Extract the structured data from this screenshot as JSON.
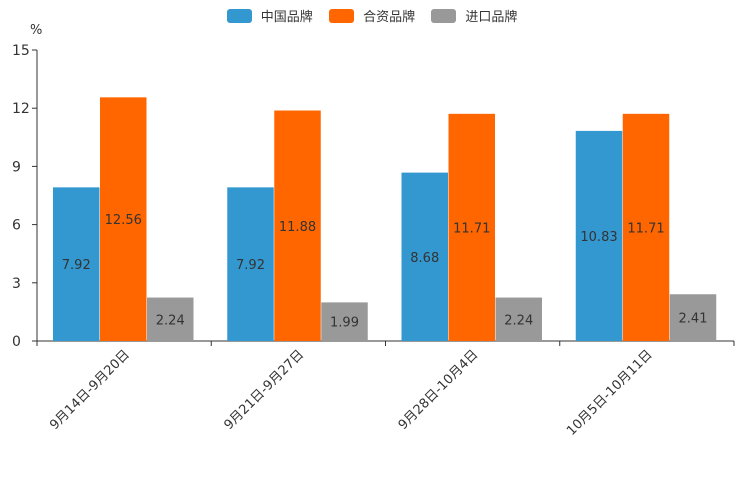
{
  "chart_data": {
    "type": "bar",
    "unit_label": "%",
    "categories": [
      "9月14日-9月20日",
      "9月21日-9月27日",
      "9月28日-10月4日",
      "10月5日-10月11日"
    ],
    "series": [
      {
        "name": "中国品牌",
        "color": "#3498d0",
        "values": [
          7.92,
          7.92,
          8.68,
          10.83
        ]
      },
      {
        "name": "合资品牌",
        "color": "#ff6600",
        "values": [
          12.56,
          11.88,
          11.71,
          11.71
        ]
      },
      {
        "name": "进口品牌",
        "color": "#999999",
        "values": [
          2.24,
          1.99,
          2.24,
          2.41
        ]
      }
    ],
    "value_labels": [
      [
        "7.92",
        "7.92",
        "8.68",
        "10.83"
      ],
      [
        "12.56",
        "11.88",
        "11.71",
        "11.71"
      ],
      [
        "2.24",
        "1.99",
        "2.24",
        "2.41"
      ]
    ],
    "y_ticks": [
      "0",
      "3",
      "6",
      "9",
      "12",
      "15"
    ],
    "ylim": [
      0,
      15
    ],
    "legend_position": "top-center",
    "grid": false
  }
}
